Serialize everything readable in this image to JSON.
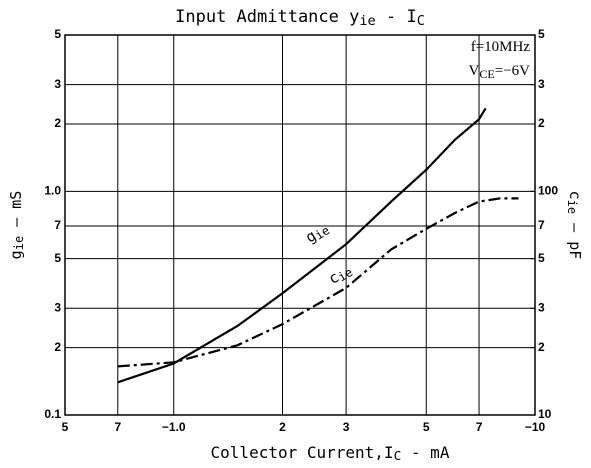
{
  "chart_data": {
    "type": "line",
    "title": [
      {
        "text": "Input Admittance y"
      },
      {
        "text": "ie",
        "sub": true
      },
      {
        "text": " - I"
      },
      {
        "text": "C",
        "sub": true
      }
    ],
    "x_label": [
      {
        "text": "Collector Current,I"
      },
      {
        "text": "C",
        "sub": true
      },
      {
        "text": " - mA"
      }
    ],
    "y_label": [
      {
        "text": "g"
      },
      {
        "text": "ie",
        "sub": true
      },
      {
        "text": " — mS"
      }
    ],
    "y2_label": [
      {
        "text": "c"
      },
      {
        "text": "ie",
        "sub": true
      },
      {
        "text": " — pF"
      }
    ],
    "annotations": [
      [
        {
          "text": "f=10MHz"
        }
      ],
      [
        {
          "text": "V"
        },
        {
          "text": "CE",
          "sub": true
        },
        {
          "text": "=−6V"
        }
      ]
    ],
    "log_x": true,
    "log_y": true,
    "grid": true,
    "xlim": [
      0.5,
      10
    ],
    "xticks": [
      {
        "value": 0.5,
        "label": "5"
      },
      {
        "value": 0.7,
        "label": "7"
      },
      {
        "value": 1,
        "label": "−1.0"
      },
      2,
      3,
      5,
      7,
      {
        "value": 10,
        "label": "−10"
      }
    ],
    "ylim": [
      0.1,
      5
    ],
    "yticks": [
      5,
      3,
      2,
      {
        "value": 1,
        "label": "1.0"
      },
      {
        "value": 0.7,
        "label": "7"
      },
      {
        "value": 0.5,
        "label": "5"
      },
      {
        "value": 0.3,
        "label": "3"
      },
      {
        "value": 0.2,
        "label": "2"
      },
      0.1
    ],
    "y2lim": [
      10,
      500
    ],
    "y2ticks": [
      {
        "value": 500,
        "label": "5"
      },
      {
        "value": 300,
        "label": "3"
      },
      {
        "value": 200,
        "label": "2"
      },
      100,
      {
        "value": 70,
        "label": "7"
      },
      {
        "value": 50,
        "label": "5"
      },
      {
        "value": 30,
        "label": "3"
      },
      {
        "value": 20,
        "label": "2"
      },
      10
    ],
    "series": [
      {
        "name": [
          {
            "text": "g"
          },
          {
            "text": "ie",
            "sub": true
          }
        ],
        "color": "#000000",
        "dash": "solid",
        "x": [
          0.7,
          1,
          1.5,
          2,
          3,
          4,
          5,
          6,
          7,
          7.3
        ],
        "values": [
          0.14,
          0.17,
          0.25,
          0.35,
          0.58,
          0.9,
          1.25,
          1.7,
          2.1,
          2.35
        ]
      },
      {
        "name": [
          {
            "text": "c"
          },
          {
            "text": "ie",
            "sub": true
          }
        ],
        "color": "#000000",
        "dash": "dash-dot",
        "axis": "y2",
        "x": [
          0.7,
          1,
          1.5,
          2,
          3,
          4,
          5,
          6,
          7,
          8,
          9
        ],
        "values": [
          16.5,
          17.2,
          20.5,
          25.5,
          37,
          55,
          68,
          80,
          90,
          93,
          93
        ]
      }
    ]
  }
}
